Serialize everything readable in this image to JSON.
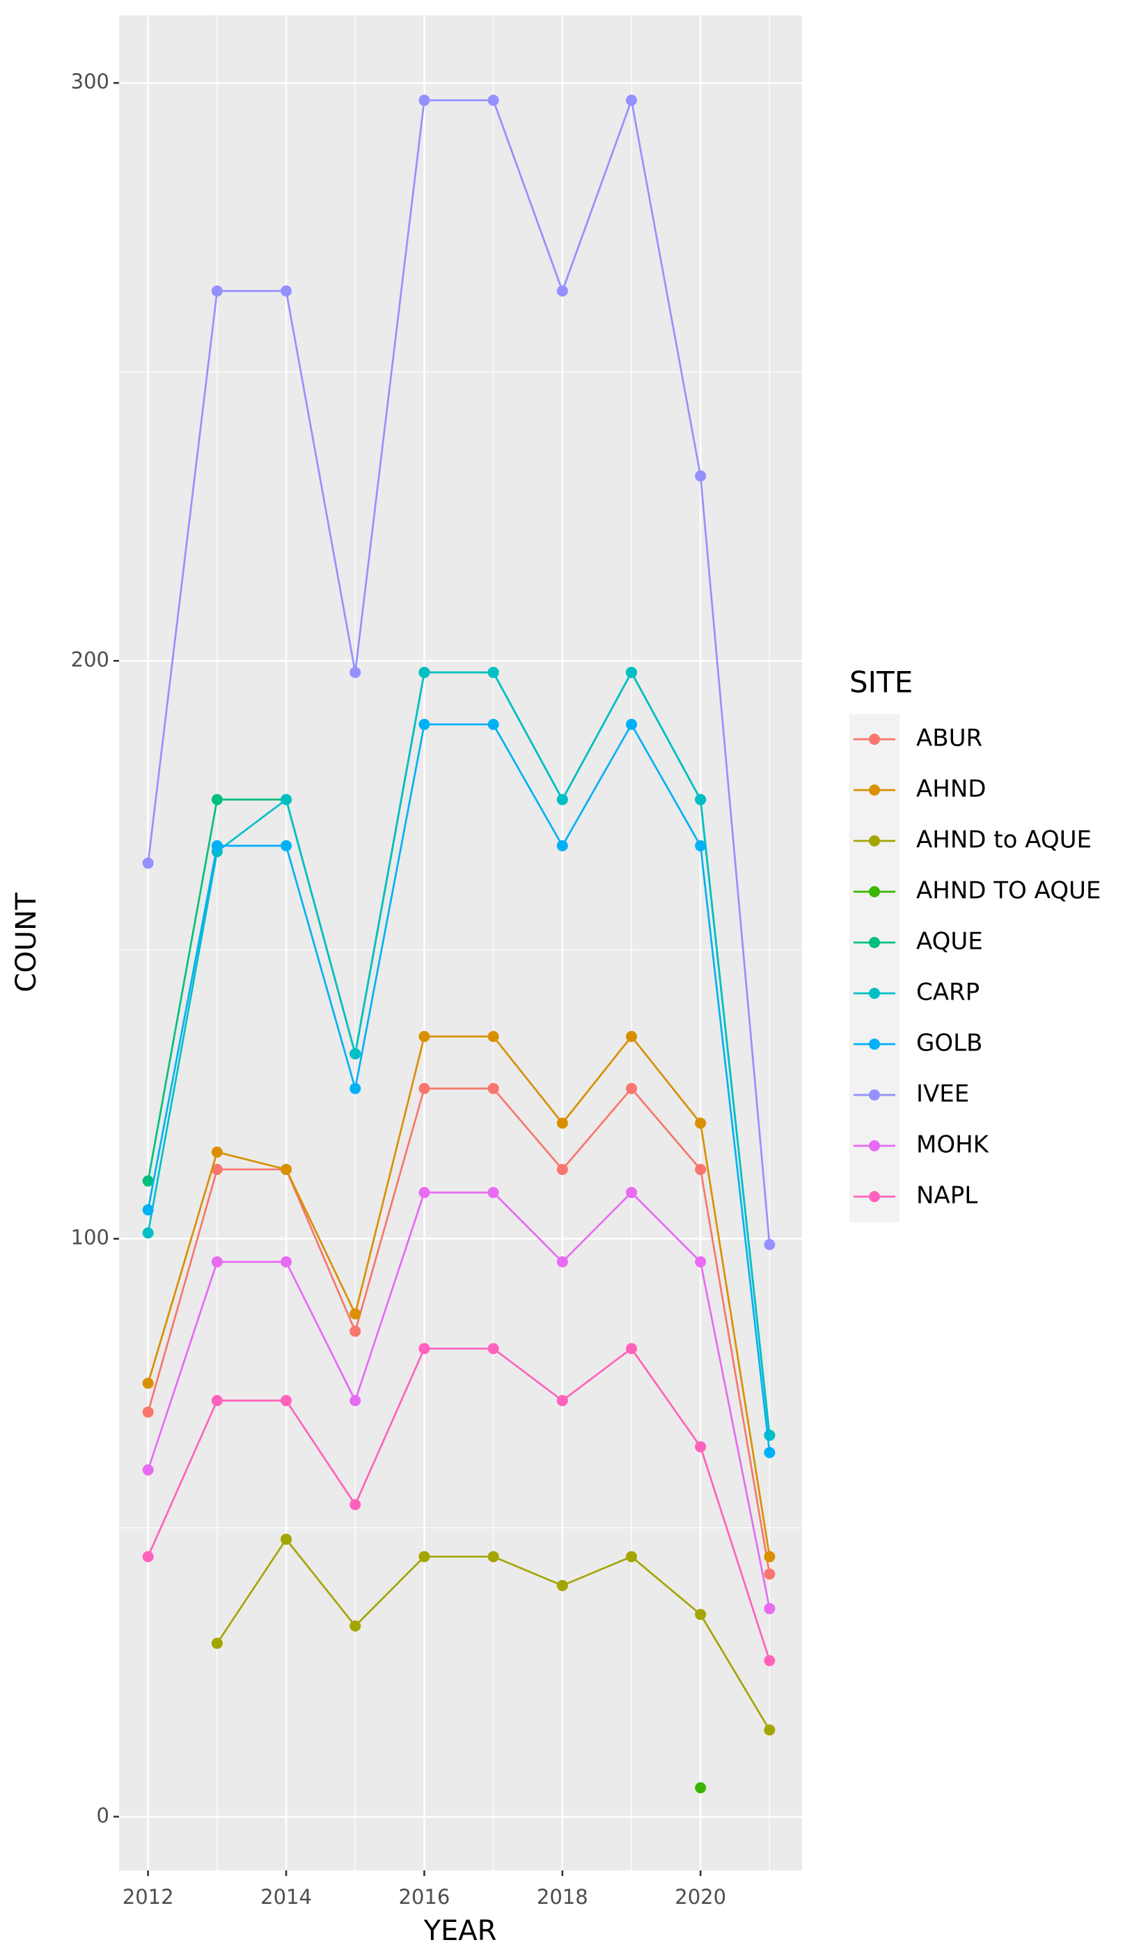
{
  "chart_data": {
    "type": "line",
    "x_label": "YEAR",
    "y_label": "COUNT",
    "legend_title": "SITE",
    "legend_position": "right",
    "x": [
      2012,
      2013,
      2014,
      2015,
      2016,
      2017,
      2018,
      2019,
      2020,
      2021
    ],
    "xlim": [
      2011.58,
      2021.47
    ],
    "xticks": [
      2012,
      2014,
      2016,
      2018,
      2020
    ],
    "x_minor_gridlines": [
      2013,
      2015,
      2017,
      2019,
      2021
    ],
    "ylim": [
      -9.3,
      311.7
    ],
    "yticks": [
      0,
      100,
      200,
      300
    ],
    "y_minor_gridlines": [
      50,
      150,
      250
    ],
    "grid": true,
    "series": [
      {
        "name": "ABUR",
        "color": "#F8766D",
        "values": [
          70,
          112,
          112,
          84,
          126,
          126,
          112,
          126,
          112,
          42
        ]
      },
      {
        "name": "AHND",
        "color": "#D89000",
        "values": [
          75,
          115,
          112,
          87,
          135,
          135,
          120,
          135,
          120,
          45
        ]
      },
      {
        "name": "AHND to AQUE",
        "color": "#A3A500",
        "values": [
          null,
          30,
          48,
          33,
          45,
          45,
          40,
          45,
          35,
          15
        ]
      },
      {
        "name": "AHND TO AQUE",
        "color": "#39B600",
        "values": [
          null,
          null,
          null,
          null,
          null,
          null,
          null,
          null,
          5,
          null
        ]
      },
      {
        "name": "AQUE",
        "color": "#00BF7D",
        "values": [
          110,
          176,
          176,
          132,
          198,
          198,
          176,
          198,
          176,
          66
        ]
      },
      {
        "name": "CARP",
        "color": "#00BFC4",
        "values": [
          101,
          167,
          176,
          132,
          198,
          198,
          176,
          198,
          176,
          66
        ]
      },
      {
        "name": "GOLB",
        "color": "#00B0F6",
        "values": [
          105,
          168,
          168,
          126,
          189,
          189,
          168,
          189,
          168,
          63
        ]
      },
      {
        "name": "IVEE",
        "color": "#9590FF",
        "values": [
          165,
          264,
          264,
          198,
          297,
          297,
          264,
          297,
          232,
          99
        ]
      },
      {
        "name": "MOHK",
        "color": "#E76BF3",
        "values": [
          60,
          96,
          96,
          72,
          108,
          108,
          96,
          108,
          96,
          36
        ]
      },
      {
        "name": "NAPL",
        "color": "#FF62BC",
        "values": [
          45,
          72,
          72,
          54,
          81,
          81,
          72,
          81,
          64,
          27
        ]
      }
    ]
  }
}
